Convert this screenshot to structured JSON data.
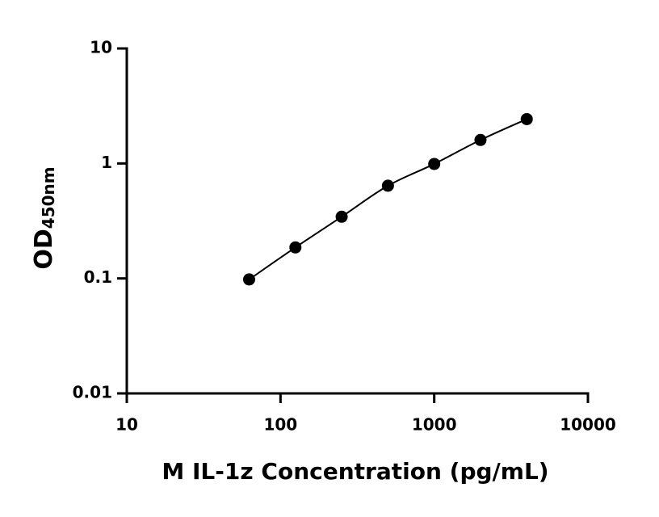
{
  "chart_data": {
    "type": "scatter",
    "y_label_main": "OD",
    "y_label_sub": "450nm",
    "x_label": "M IL-1z Concentration (pg/mL)",
    "x": [
      62.5,
      125,
      250,
      500,
      1000,
      2000,
      4000
    ],
    "series": [
      {
        "color": "#000000",
        "values": [
          0.098,
          0.186,
          0.344,
          0.64,
          0.99,
          1.6,
          2.43
        ]
      }
    ],
    "xlim": [
      10,
      10000
    ],
    "xticks": [
      10,
      100,
      1000,
      10000
    ],
    "ylim": [
      0.01,
      10
    ],
    "yticks": [
      0.01,
      0.1,
      1,
      10
    ],
    "xscale": "log",
    "yscale": "log",
    "fit_line": true,
    "grid": false
  }
}
